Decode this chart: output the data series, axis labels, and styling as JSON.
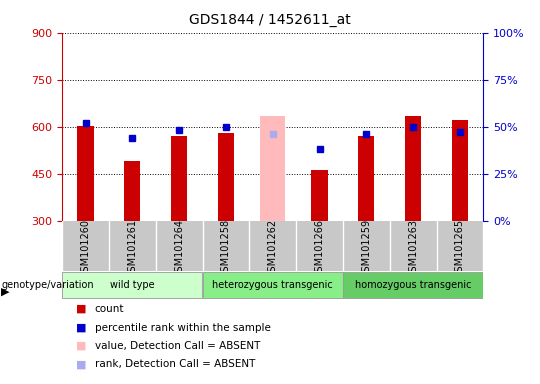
{
  "title": "GDS1844 / 1452611_at",
  "samples": [
    "GSM101260",
    "GSM101261",
    "GSM101264",
    "GSM101258",
    "GSM101262",
    "GSM101266",
    "GSM101259",
    "GSM101263",
    "GSM101265"
  ],
  "count_values": [
    603,
    490,
    572,
    580,
    null,
    462,
    572,
    635,
    623
  ],
  "absent_value": [
    null,
    null,
    null,
    null,
    635,
    null,
    null,
    null,
    null
  ],
  "percentile_rank": [
    52,
    44,
    48,
    50,
    null,
    38,
    46,
    50,
    47
  ],
  "absent_rank": [
    null,
    null,
    null,
    null,
    46,
    null,
    null,
    null,
    null
  ],
  "ylim_left": [
    300,
    900
  ],
  "ylim_right": [
    0,
    100
  ],
  "yticks_left": [
    300,
    450,
    600,
    750,
    900
  ],
  "yticks_right": [
    0,
    25,
    50,
    75,
    100
  ],
  "groups": [
    {
      "label": "wild type",
      "start": 0,
      "end": 3
    },
    {
      "label": "heterozygous transgenic",
      "start": 3,
      "end": 6
    },
    {
      "label": "homozygous transgenic",
      "start": 6,
      "end": 9
    }
  ],
  "group_colors": [
    "#ccffcc",
    "#88ee88",
    "#66cc66"
  ],
  "bar_width": 0.35,
  "count_color": "#cc0000",
  "absent_color": "#ffbbbb",
  "rank_color": "#0000cc",
  "absent_rank_color": "#aaaaee",
  "legend_items": [
    {
      "color": "#cc0000",
      "label": "count"
    },
    {
      "color": "#0000cc",
      "label": "percentile rank within the sample"
    },
    {
      "color": "#ffbbbb",
      "label": "value, Detection Call = ABSENT"
    },
    {
      "color": "#aaaaee",
      "label": "rank, Detection Call = ABSENT"
    }
  ]
}
